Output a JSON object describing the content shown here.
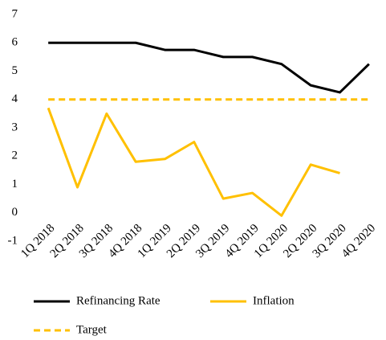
{
  "chart_data": {
    "type": "line",
    "categories": [
      "1Q 2018",
      "2Q 2018",
      "3Q 2018",
      "4Q 2018",
      "1Q 2019",
      "2Q 2019",
      "3Q 2019",
      "4Q 2019",
      "1Q 2020",
      "2Q 2020",
      "3Q 2020",
      "4Q 2020"
    ],
    "series": [
      {
        "name": "Refinancing Rate",
        "color": "#000000",
        "values": [
          6,
          6,
          6,
          6,
          5.75,
          5.75,
          5.5,
          5.5,
          5.25,
          4.5,
          4.25,
          5.25
        ]
      },
      {
        "name": "Inflation",
        "color": "#ffc000",
        "values": [
          3.7,
          0.9,
          3.5,
          1.8,
          1.9,
          2.5,
          0.5,
          0.7,
          -0.1,
          1.7,
          1.4,
          null
        ]
      },
      {
        "name": "Target",
        "color": "#ffc000",
        "dashed": true,
        "values": [
          4,
          4,
          4,
          4,
          4,
          4,
          4,
          4,
          4,
          4,
          4,
          4
        ]
      }
    ],
    "ylim": [
      -1,
      7
    ],
    "yticks": [
      -1,
      0,
      1,
      2,
      3,
      4,
      5,
      6,
      7
    ],
    "grid": false
  }
}
